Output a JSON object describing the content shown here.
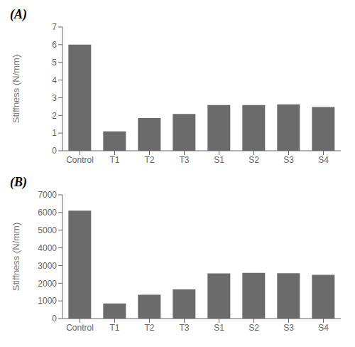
{
  "chart_data": [
    {
      "type": "bar",
      "title": "(A)",
      "categories": [
        "Control",
        "T1",
        "T2",
        "T3",
        "S1",
        "S2",
        "S3",
        "S4"
      ],
      "values": [
        6.0,
        1.1,
        1.85,
        2.08,
        2.58,
        2.58,
        2.63,
        2.47
      ],
      "color": "#6b6b6b",
      "ylabel": "Stiffness (N/mm)",
      "ylim": [
        0,
        7
      ],
      "yticks": [
        0,
        1,
        2,
        3,
        4,
        5,
        6,
        7
      ],
      "grid": false
    },
    {
      "type": "bar",
      "title": "(B)",
      "categories": [
        "Control",
        "T1",
        "T2",
        "T3",
        "S1",
        "S2",
        "S3",
        "S4"
      ],
      "values": [
        6100,
        850,
        1350,
        1650,
        2550,
        2580,
        2560,
        2470
      ],
      "color": "#6b6b6b",
      "ylabel": "Stiffness (N/mm)",
      "ylim": [
        0,
        7000
      ],
      "yticks": [
        0,
        1000,
        2000,
        3000,
        4000,
        5000,
        6000,
        7000
      ],
      "grid": false
    }
  ]
}
